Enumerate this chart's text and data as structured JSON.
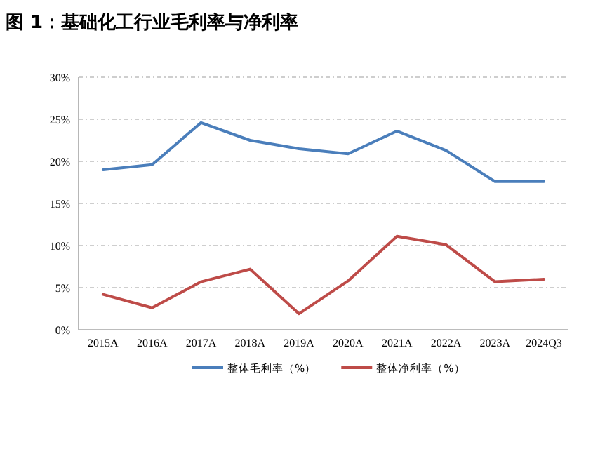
{
  "chart_data": {
    "type": "line",
    "title": "图 1：基础化工行业毛利率与净利率",
    "categories": [
      "2015A",
      "2016A",
      "2017A",
      "2018A",
      "2019A",
      "2020A",
      "2021A",
      "2022A",
      "2023A",
      "2024Q3"
    ],
    "series": [
      {
        "name": "整体毛利率（%）",
        "color": "#4a7ebb",
        "values": [
          19.0,
          19.6,
          24.6,
          22.5,
          21.5,
          20.9,
          23.6,
          21.3,
          17.6,
          17.6
        ]
      },
      {
        "name": "整体净利率（%）",
        "color": "#be4b48",
        "values": [
          4.2,
          2.6,
          5.7,
          7.2,
          1.9,
          5.8,
          11.1,
          10.1,
          5.7,
          6.0
        ]
      }
    ],
    "ylim": [
      0,
      30
    ],
    "yticks": [
      {
        "value": 0,
        "label": "0%"
      },
      {
        "value": 5,
        "label": "5%"
      },
      {
        "value": 10,
        "label": "10%"
      },
      {
        "value": 15,
        "label": "15%"
      },
      {
        "value": 20,
        "label": "20%"
      },
      {
        "value": 25,
        "label": "25%"
      },
      {
        "value": 30,
        "label": "30%"
      }
    ],
    "grid": "y",
    "legend": "bottom",
    "marker": "none",
    "line_style": "solid"
  }
}
